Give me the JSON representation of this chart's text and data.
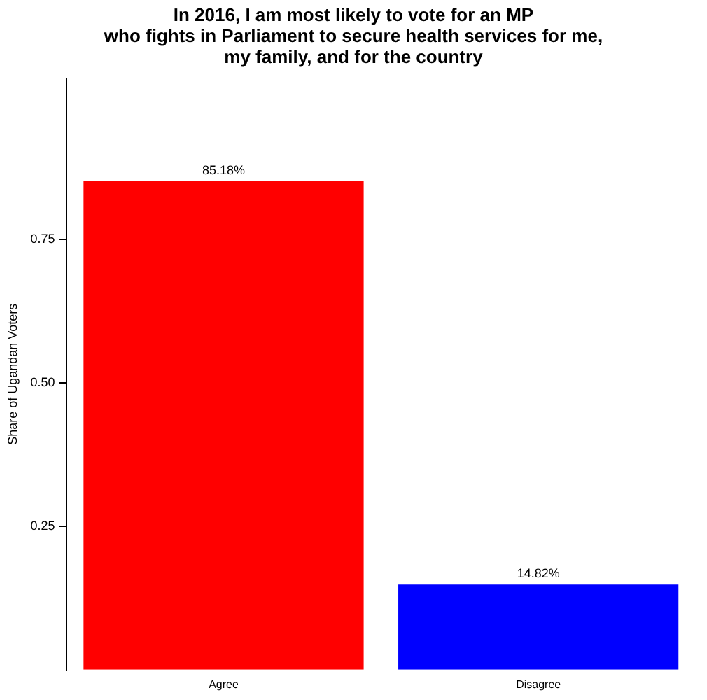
{
  "chart_data": {
    "type": "bar",
    "title": "In 2016, I am most likely to vote for an MP\nwho fights in Parliament to secure health services for me,\nmy family, and for the country",
    "ylabel": "Share of Ugandan Voters",
    "categories": [
      "Agree",
      "Disagree"
    ],
    "values": [
      0.8518,
      0.1482
    ],
    "colors": [
      "#ff0000",
      "#0000ff"
    ],
    "value_labels": [
      "85.18%",
      "14.82%"
    ],
    "ylim": [
      0,
      1.03
    ],
    "yticks": [
      0.25,
      {
        "value": 0.5,
        "label": "0.50"
      },
      0.75
    ],
    "grid": false,
    "legend": false
  }
}
